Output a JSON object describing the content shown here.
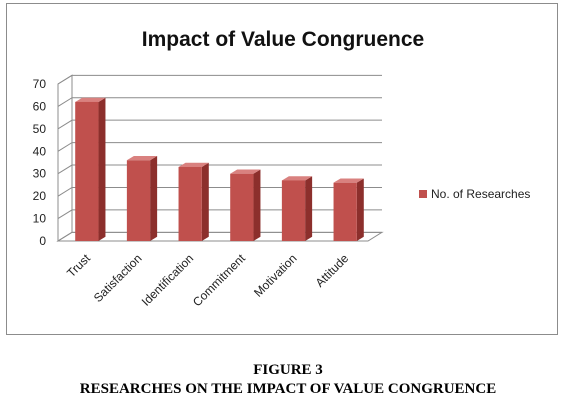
{
  "chart_data": {
    "type": "bar",
    "title": "Impact of Value Congruence",
    "categories": [
      "Trust",
      "Satisfaction",
      "Identification",
      "Commitment",
      "Motivation",
      "Attitude"
    ],
    "series": [
      {
        "name": "No. of Researches",
        "values": [
          62,
          36,
          33,
          30,
          27,
          26
        ]
      }
    ],
    "ylim": [
      0,
      70
    ],
    "yticks": [
      0,
      10,
      20,
      30,
      40,
      50,
      60,
      70
    ],
    "xlabel": "",
    "ylabel": "",
    "grid": true,
    "legend": "right",
    "style": "3d-column",
    "colors": {
      "bar_front": "#c0504d",
      "bar_side": "#8c2f2c",
      "bar_top": "#d9817f"
    }
  },
  "caption": {
    "label": "FIGURE 3",
    "text": "RESEARCHES ON THE IMPACT OF VALUE CONGRUENCE"
  }
}
